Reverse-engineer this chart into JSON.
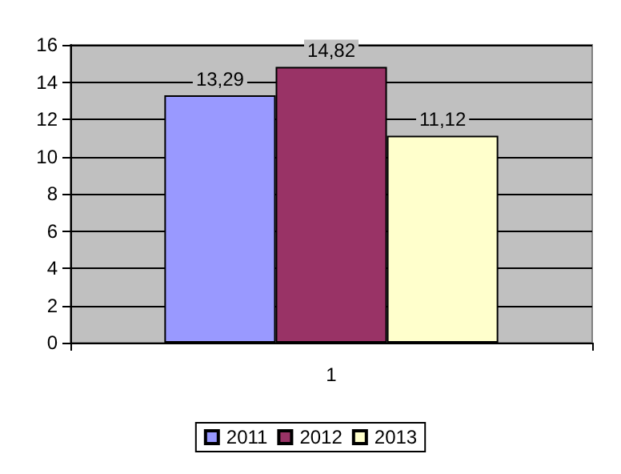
{
  "chart_data": {
    "type": "bar",
    "categories": [
      "1"
    ],
    "series": [
      {
        "name": "2011",
        "color": "#9999ff",
        "values": [
          13.29
        ],
        "value_labels": [
          "13,29"
        ]
      },
      {
        "name": "2012",
        "color": "#993366",
        "values": [
          14.82
        ],
        "value_labels": [
          "14,82"
        ]
      },
      {
        "name": "2013",
        "color": "#ffffcc",
        "values": [
          11.12
        ],
        "value_labels": [
          "11,12"
        ]
      }
    ],
    "ylim": [
      0,
      16
    ],
    "yticks": [
      0,
      2,
      4,
      6,
      8,
      10,
      12,
      14,
      16
    ],
    "grid": "y",
    "legend": "bottom"
  }
}
